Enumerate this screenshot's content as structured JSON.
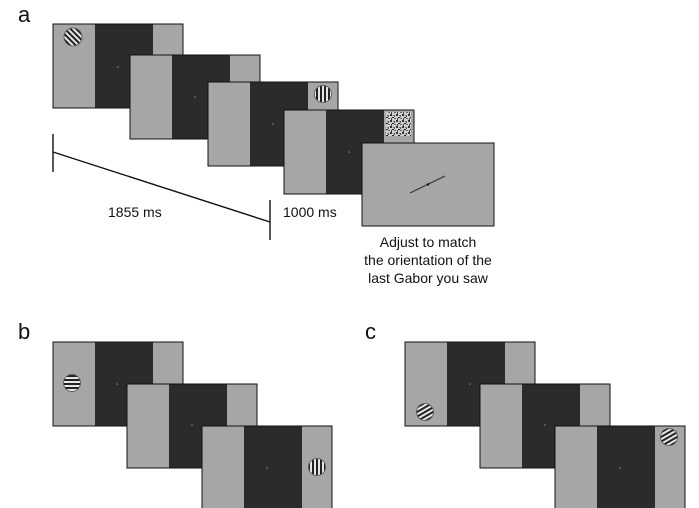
{
  "panels": {
    "a": "a",
    "b": "b",
    "c": "c"
  },
  "timing": {
    "interval_1": "1855 ms",
    "interval_2": "1000 ms"
  },
  "instruction": [
    "Adjust to match",
    "the orientation of the",
    "last Gabor you saw"
  ],
  "colors": {
    "gray": "#a6a6a6",
    "dark": "#2b2b2b",
    "border": "#111111"
  },
  "icons": {
    "gabor": "gabor-patch-icon",
    "mask": "noise-mask-icon",
    "probe": "orientation-line-icon"
  }
}
